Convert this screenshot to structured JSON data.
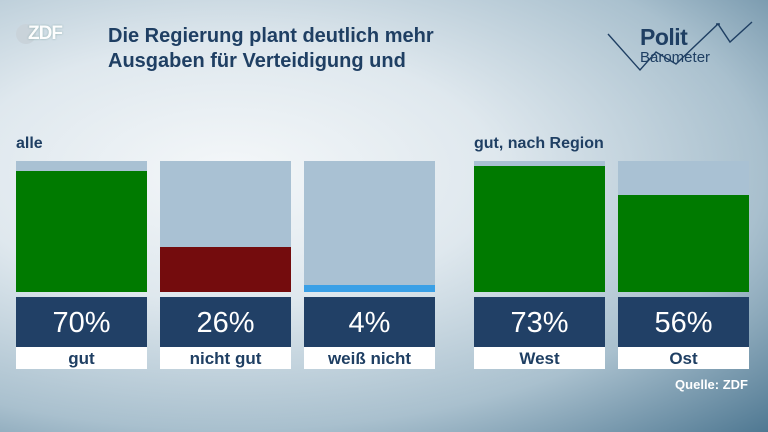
{
  "header": {
    "logo": "ZDF",
    "title_line1": "Die Regierung plant deutlich mehr",
    "title_line2": "Ausgaben für Verteidigung und",
    "brand_line1": "Polit",
    "brand_line2": "Barometer"
  },
  "source": "Quelle: ZDF",
  "colors": {
    "positive": "#007a00",
    "negative": "#740c0d",
    "neutral": "#3aa0e6",
    "bar_background": "#a9c1d3",
    "value_box": "#214066"
  },
  "chart_data": [
    {
      "type": "bar",
      "group_label": "alle",
      "categories": [
        "gut",
        "nicht gut",
        "weiß nicht"
      ],
      "values": [
        70,
        26,
        4
      ],
      "value_labels": [
        "70%",
        "26%",
        "4%"
      ],
      "colors": [
        "#007a00",
        "#740c0d",
        "#3aa0e6"
      ],
      "ylim": [
        0,
        76
      ]
    },
    {
      "type": "bar",
      "group_label": "gut, nach Region",
      "categories": [
        "West",
        "Ost"
      ],
      "values": [
        73,
        56
      ],
      "value_labels": [
        "73%",
        "56%"
      ],
      "colors": [
        "#007a00",
        "#007a00"
      ],
      "ylim": [
        0,
        76
      ]
    }
  ]
}
